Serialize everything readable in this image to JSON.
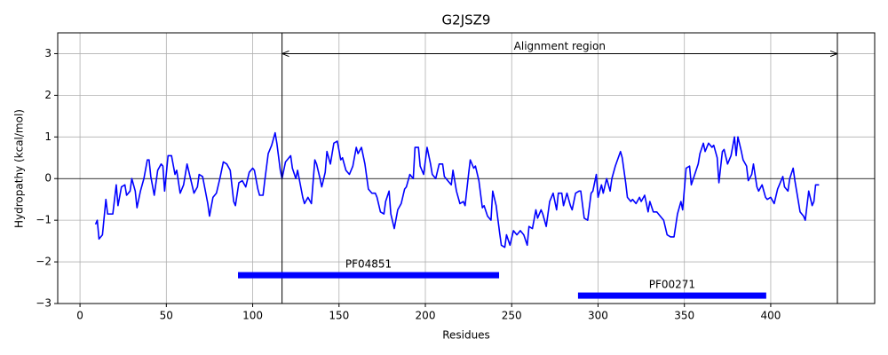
{
  "chart_data": {
    "type": "line",
    "title": "G2JSZ9",
    "x_label": "Residues",
    "y_label": "Hydropathy (kcal/mol)",
    "xlim": [
      -12.9,
      460.2
    ],
    "ylim": [
      -3,
      3.5
    ],
    "xticks": [
      0,
      50,
      100,
      150,
      200,
      250,
      300,
      350,
      400
    ],
    "yticks": [
      {
        "value": -3,
        "label": "−3"
      },
      {
        "value": -2,
        "label": "−2"
      },
      {
        "value": -1,
        "label": "−1"
      },
      0,
      1,
      2,
      3
    ],
    "grid": true,
    "hline": 0,
    "x": [
      9,
      10,
      11,
      13,
      15,
      16,
      19,
      21,
      22,
      24,
      26,
      27,
      29,
      30,
      32,
      33,
      35,
      37,
      39,
      40,
      41,
      43,
      45,
      47,
      48,
      49,
      51,
      53,
      55,
      56,
      58,
      60,
      62,
      64,
      66,
      68,
      69,
      71,
      74,
      75,
      77,
      79,
      81,
      83,
      85,
      87,
      89,
      90,
      92,
      94,
      96,
      98,
      100,
      101,
      103,
      104,
      106,
      107,
      109,
      111,
      113,
      114,
      116,
      117,
      119,
      120,
      122,
      123,
      125,
      126,
      129,
      130,
      132,
      134,
      136,
      137,
      139,
      140,
      142,
      143,
      145,
      147,
      149,
      151,
      152,
      154,
      156,
      158,
      160,
      161,
      163,
      165,
      167,
      169,
      171,
      172,
      174,
      176,
      177,
      179,
      180,
      182,
      184,
      186,
      188,
      189,
      191,
      193,
      194,
      196,
      197,
      199,
      201,
      203,
      204,
      206,
      208,
      210,
      211,
      213,
      215,
      216,
      218,
      220,
      222,
      223,
      225,
      226,
      228,
      229,
      231,
      233,
      234,
      236,
      238,
      239,
      241,
      243,
      244,
      246,
      247,
      249,
      251,
      253,
      255,
      257,
      259,
      260,
      262,
      264,
      265,
      267,
      268,
      270,
      272,
      274,
      276,
      277,
      279,
      280,
      282,
      284,
      285,
      287,
      289,
      290,
      292,
      294,
      296,
      297,
      299,
      300,
      302,
      303,
      305,
      307,
      308,
      310,
      313,
      314,
      316,
      317,
      319,
      320,
      322,
      324,
      325,
      327,
      329,
      330,
      332,
      334,
      336,
      338,
      340,
      342,
      344,
      346,
      348,
      349,
      351,
      353,
      354,
      356,
      358,
      359,
      361,
      362,
      364,
      366,
      367,
      369,
      370,
      372,
      373,
      375,
      377,
      379,
      380,
      381,
      383,
      384,
      386,
      387,
      389,
      390,
      392,
      393,
      395,
      397,
      398,
      400,
      402,
      404,
      405,
      407,
      408,
      410,
      411,
      413,
      414,
      416,
      417,
      419,
      420,
      422,
      424,
      425,
      426,
      428
    ],
    "series": [
      {
        "color": "#0000ff",
        "values": [
          -1.1,
          -1.0,
          -1.45,
          -1.35,
          -0.5,
          -0.85,
          -0.85,
          -0.15,
          -0.65,
          -0.2,
          -0.15,
          -0.4,
          -0.3,
          0.0,
          -0.3,
          -0.7,
          -0.3,
          0.0,
          0.45,
          0.45,
          0.05,
          -0.4,
          0.2,
          0.35,
          0.3,
          -0.3,
          0.55,
          0.55,
          0.1,
          0.2,
          -0.35,
          -0.15,
          0.35,
          0.0,
          -0.35,
          -0.2,
          0.1,
          0.05,
          -0.6,
          -0.9,
          -0.45,
          -0.35,
          0.0,
          0.4,
          0.35,
          0.2,
          -0.55,
          -0.65,
          -0.1,
          -0.05,
          -0.2,
          0.15,
          0.25,
          0.2,
          -0.25,
          -0.4,
          -0.4,
          -0.05,
          0.6,
          0.8,
          1.1,
          0.85,
          0.2,
          0.0,
          0.4,
          0.45,
          0.55,
          0.25,
          0.0,
          0.2,
          -0.45,
          -0.6,
          -0.45,
          -0.6,
          0.45,
          0.35,
          0.0,
          -0.2,
          0.15,
          0.65,
          0.35,
          0.85,
          0.9,
          0.45,
          0.5,
          0.2,
          0.1,
          0.3,
          0.75,
          0.6,
          0.75,
          0.35,
          -0.25,
          -0.35,
          -0.35,
          -0.45,
          -0.8,
          -0.85,
          -0.55,
          -0.3,
          -0.85,
          -1.2,
          -0.75,
          -0.6,
          -0.25,
          -0.2,
          0.1,
          0.0,
          0.75,
          0.75,
          0.3,
          0.1,
          0.75,
          0.35,
          0.1,
          0.0,
          0.35,
          0.35,
          0.05,
          -0.05,
          -0.15,
          0.2,
          -0.3,
          -0.6,
          -0.55,
          -0.65,
          0.1,
          0.45,
          0.25,
          0.3,
          -0.05,
          -0.7,
          -0.65,
          -0.9,
          -1.0,
          -0.3,
          -0.65,
          -1.3,
          -1.6,
          -1.65,
          -1.35,
          -1.6,
          -1.25,
          -1.35,
          -1.25,
          -1.35,
          -1.6,
          -1.15,
          -1.2,
          -0.75,
          -0.95,
          -0.75,
          -0.85,
          -1.15,
          -0.55,
          -0.35,
          -0.75,
          -0.35,
          -0.35,
          -0.65,
          -0.35,
          -0.65,
          -0.75,
          -0.35,
          -0.3,
          -0.3,
          -0.95,
          -1.0,
          -0.35,
          -0.3,
          0.1,
          -0.45,
          -0.15,
          -0.35,
          0.0,
          -0.3,
          0.0,
          0.3,
          0.65,
          0.5,
          -0.1,
          -0.45,
          -0.55,
          -0.5,
          -0.6,
          -0.45,
          -0.55,
          -0.4,
          -0.8,
          -0.55,
          -0.8,
          -0.8,
          -0.9,
          -1.0,
          -1.35,
          -1.4,
          -1.4,
          -0.85,
          -0.55,
          -0.75,
          0.25,
          0.3,
          -0.15,
          0.1,
          0.35,
          0.6,
          0.85,
          0.65,
          0.85,
          0.75,
          0.8,
          0.5,
          -0.1,
          0.65,
          0.7,
          0.35,
          0.55,
          1.0,
          0.55,
          1.0,
          0.65,
          0.45,
          0.3,
          -0.05,
          0.1,
          0.35,
          -0.2,
          -0.3,
          -0.15,
          -0.45,
          -0.5,
          -0.45,
          -0.6,
          -0.25,
          -0.15,
          0.05,
          -0.2,
          -0.3,
          0.0,
          0.25,
          -0.05,
          -0.55,
          -0.8,
          -0.9,
          -1.0,
          -0.3,
          -0.65,
          -0.55,
          -0.15,
          -0.15
        ]
      }
    ],
    "region": {
      "text": "Alignment region",
      "start": 117,
      "end": 438.6,
      "y": 3
    },
    "domains": [
      {
        "name": "PF04851",
        "start": 91.5,
        "end": 242.7,
        "y": -2.32,
        "color": "#0000ff"
      },
      {
        "name": "PF00271",
        "start": 288.4,
        "end": 397.4,
        "y": -2.81,
        "color": "#0000ff"
      }
    ]
  }
}
